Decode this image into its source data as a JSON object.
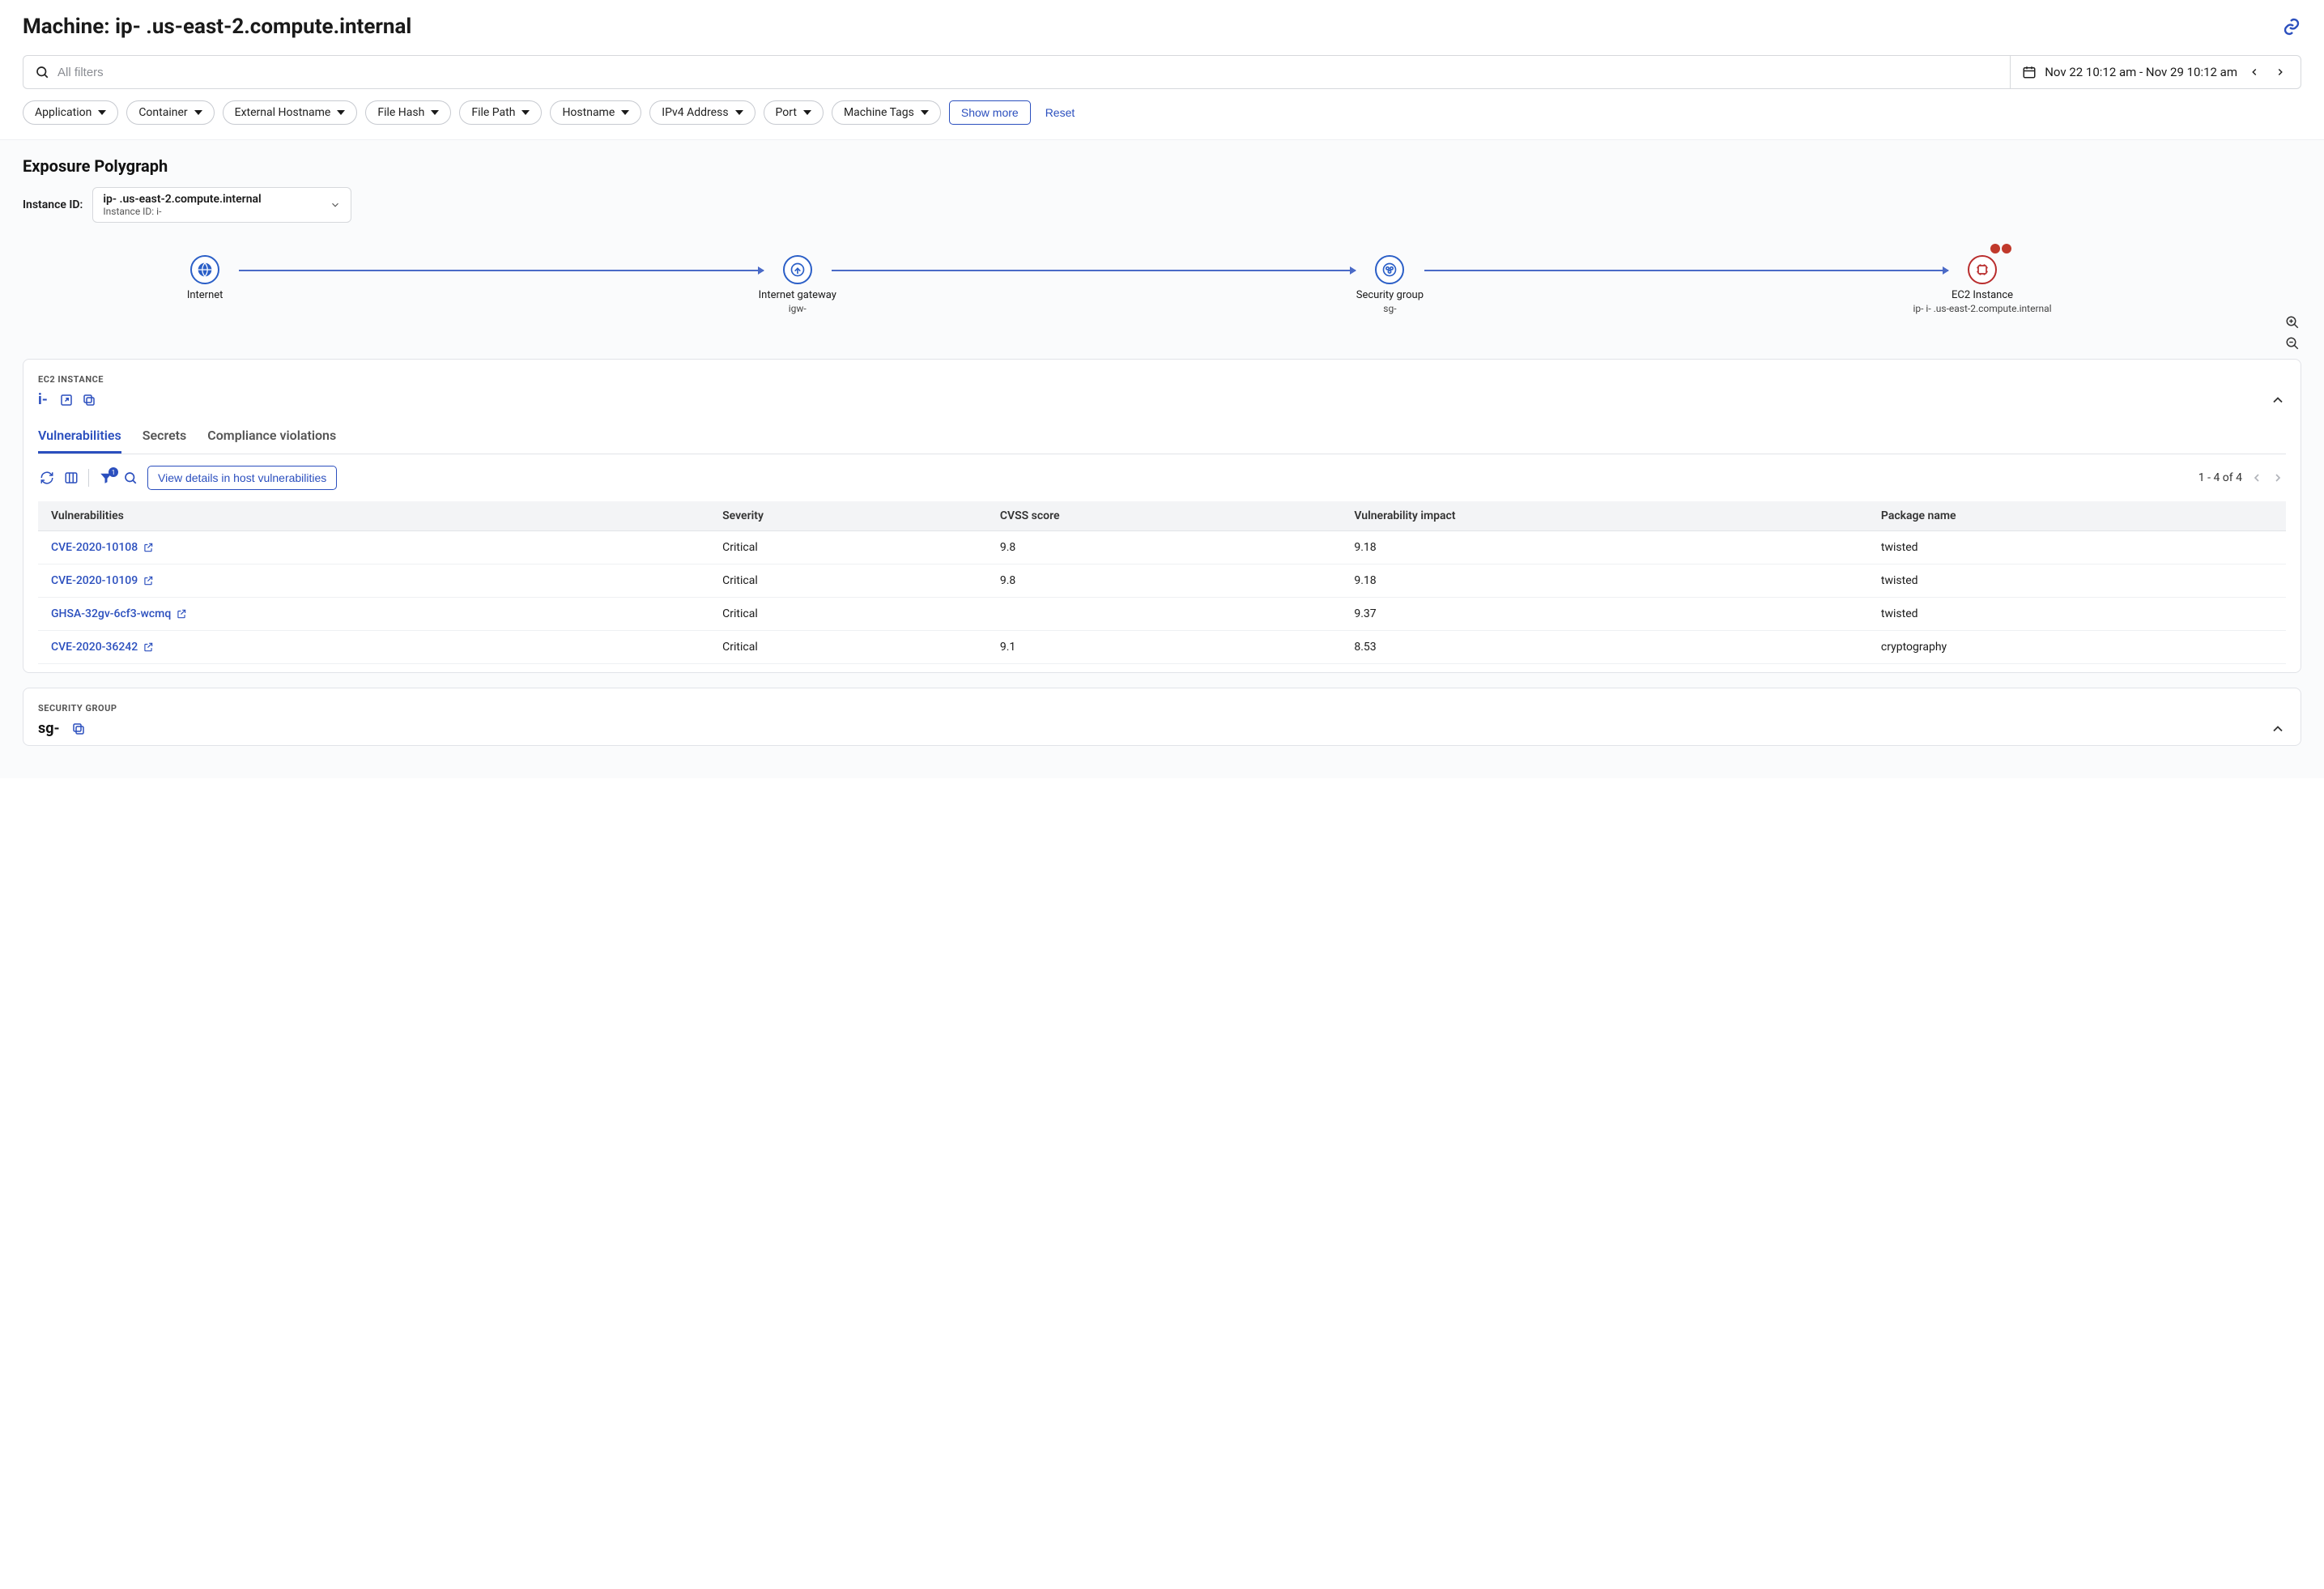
{
  "header": {
    "title": "Machine: ip-                       .us-east-2.compute.internal"
  },
  "filters": {
    "placeholder": "All filters",
    "date_range": "Nov 22 10:12 am - Nov 29 10:12 am",
    "pills": {
      "application": "Application",
      "container": "Container",
      "external_hostname": "External Hostname",
      "file_hash": "File Hash",
      "file_path": "File Path",
      "hostname": "Hostname",
      "ipv4": "IPv4 Address",
      "port": "Port",
      "machine_tags": "Machine Tags"
    },
    "show_more": "Show more",
    "reset": "Reset"
  },
  "polygraph": {
    "title": "Exposure Polygraph",
    "instance_label": "Instance ID:",
    "instance_line1": "ip-                .us-east-2.compute.internal",
    "instance_line2": "Instance ID: i-",
    "nodes": {
      "internet": {
        "label": "Internet",
        "pos_pct": 8
      },
      "igw": {
        "label": "Internet gateway",
        "sub": "igw-",
        "pos_pct": 34
      },
      "sg": {
        "label": "Security group",
        "sub": "sg-",
        "pos_pct": 60
      },
      "ec2": {
        "label": "EC2 Instance",
        "sub": "ip-                i-        .us-east-2.compute.internal",
        "pos_pct": 86,
        "color": "#b92d2d"
      }
    },
    "edges": [
      {
        "from_pct": 9.5,
        "to_pct": 32.5
      },
      {
        "from_pct": 35.5,
        "to_pct": 58.5
      },
      {
        "from_pct": 61.5,
        "to_pct": 84.5
      }
    ],
    "node_border_color": "#2b5fc7",
    "edge_color": "#4a6ac7"
  },
  "ec2_panel": {
    "label": "EC2 INSTANCE",
    "title": "i-",
    "tabs": {
      "vulnerabilities": "Vulnerabilities",
      "secrets": "Secrets",
      "compliance": "Compliance violations"
    },
    "view_details": "View details in host vulnerabilities",
    "pager": "1 - 4 of 4",
    "filter_badge": "1",
    "table": {
      "columns": {
        "vulnerabilities": "Vulnerabilities",
        "severity": "Severity",
        "cvss": "CVSS score",
        "impact": "Vulnerability impact",
        "package": "Package name"
      },
      "rows": [
        {
          "id": "CVE-2020-10108",
          "severity": "Critical",
          "cvss": "9.8",
          "impact": "9.18",
          "package": "twisted"
        },
        {
          "id": "CVE-2020-10109",
          "severity": "Critical",
          "cvss": "9.8",
          "impact": "9.18",
          "package": "twisted"
        },
        {
          "id": "GHSA-32gv-6cf3-wcmq",
          "severity": "Critical",
          "cvss": "",
          "impact": "9.37",
          "package": "twisted"
        },
        {
          "id": "CVE-2020-36242",
          "severity": "Critical",
          "cvss": "9.1",
          "impact": "8.53",
          "package": "cryptography"
        }
      ]
    }
  },
  "sg_panel": {
    "label": "SECURITY GROUP",
    "title": "sg-"
  },
  "colors": {
    "accent": "#2b4fbe",
    "border": "#d6d8dc",
    "panel_border": "#e1e3e8",
    "bg_subtle": "#fafbfc",
    "table_header_bg": "#f3f4f6",
    "danger": "#b92d2d"
  }
}
